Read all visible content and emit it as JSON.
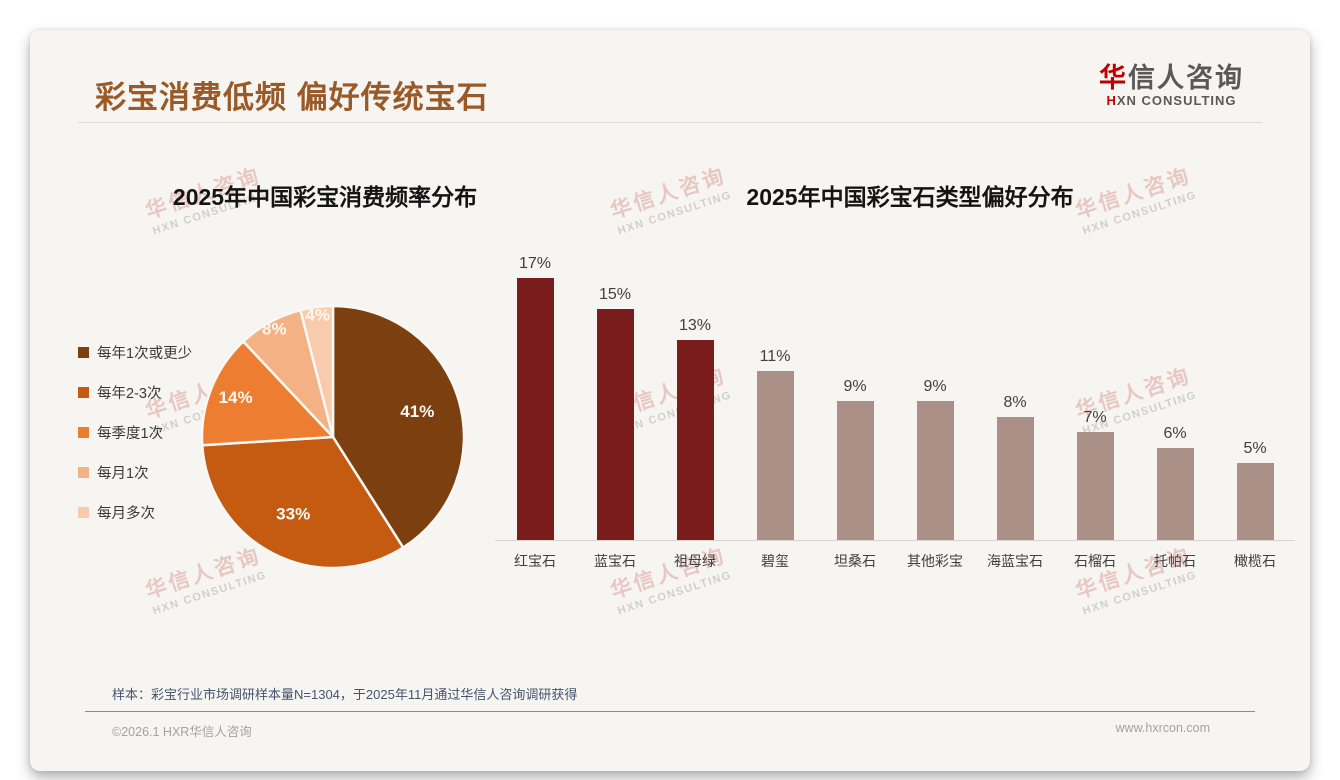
{
  "header": {
    "title": "彩宝消费低频 偏好传统宝石",
    "logo": {
      "zh_accent": "华",
      "zh_rest": "信人咨询",
      "en_accent": "H",
      "en_rest": "XN CONSULTING"
    }
  },
  "watermark": {
    "zh": "华信人咨询",
    "en": "HXN CONSULTING"
  },
  "theme": {
    "title_color": "#9A5A28",
    "brand_red": "#C00000",
    "logo_gray": "#595959",
    "footnote_color": "#44546A",
    "card_bg": "#F6F5F2"
  },
  "chart_data": [
    {
      "type": "pie",
      "title": "2025年中国彩宝消费频率分布",
      "labels": [
        "每年1次或更少",
        "每年2-3次",
        "每季度1次",
        "每月1次",
        "每月多次"
      ],
      "values": [
        41,
        33,
        14,
        8,
        4
      ],
      "unit": "%",
      "colors": [
        "#7B3F10",
        "#C55A11",
        "#ED7D31",
        "#F4B183",
        "#F8CBAD"
      ],
      "slice_border_color": "#FAF8F5",
      "legend_position": "left",
      "start_angle_deg": 0,
      "direction": "clockwise",
      "value_labels": "inside"
    },
    {
      "type": "bar",
      "title": "2025年中国彩宝石类型偏好分布",
      "categories": [
        "红宝石",
        "蓝宝石",
        "祖母绿",
        "碧玺",
        "坦桑石",
        "其他彩宝",
        "海蓝宝石",
        "石榴石",
        "托帕石",
        "橄榄石"
      ],
      "values": [
        17,
        15,
        13,
        11,
        9,
        9,
        8,
        7,
        6,
        5
      ],
      "unit": "%",
      "bar_colors": [
        "#7A1C1C",
        "#7A1C1C",
        "#7A1C1C",
        "#AB9087",
        "#AB9087",
        "#AB9087",
        "#AB9087",
        "#AB9087",
        "#AB9087",
        "#AB9087"
      ],
      "highlight_color": "#7A1C1C",
      "base_color": "#AB9087",
      "ylim": [
        0,
        18
      ],
      "grid": false,
      "value_labels": "above",
      "xlabel": "",
      "ylabel": ""
    }
  ],
  "footer": {
    "footnote": "样本：彩宝行业市场调研样本量N=1304，于2025年11月通过华信人咨询调研获得",
    "copyright": "©2026.1 HXR华信人咨询",
    "website": "www.hxrcon.com"
  }
}
